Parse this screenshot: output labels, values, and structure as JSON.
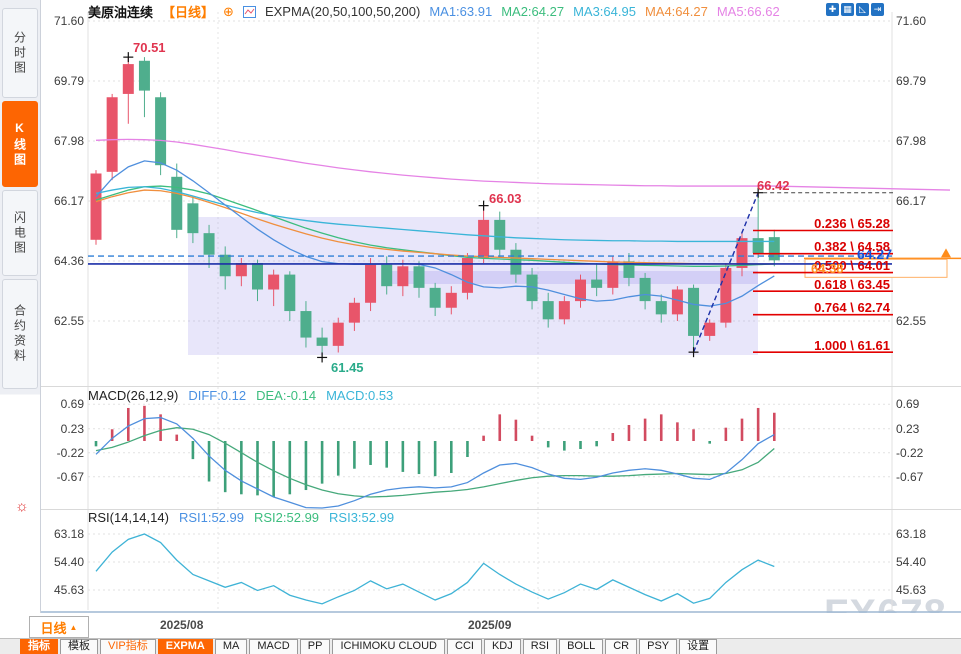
{
  "header": {
    "symbol": "美原油连续",
    "period": "【日线】",
    "plus_icon": "⊕",
    "indicator": "EXPMA(20,50,100,50,200)",
    "ma_labels": [
      {
        "text": "MA1:63.91"
      },
      {
        "text": "MA2:64.27"
      },
      {
        "text": "MA3:64.95"
      },
      {
        "text": "MA4:64.27"
      },
      {
        "text": "MA5:66.62"
      }
    ],
    "window_icons": [
      "✚",
      "▦",
      "◺",
      "⇥"
    ]
  },
  "sidebar": {
    "tabs": [
      {
        "label": "分时图"
      },
      {
        "label": "K线图"
      },
      {
        "label": "闪电图"
      },
      {
        "label": "合约资料"
      }
    ],
    "sun_glyph": "☼"
  },
  "main_chart": {
    "left_axis": [
      "71.60",
      "69.79",
      "67.98",
      "66.17",
      "64.36",
      "62.55"
    ],
    "right_axis": [
      "71.60",
      "69.79",
      "67.98",
      "66.17",
      "62.55"
    ],
    "annotations": {
      "peak": "70.51",
      "secondary_peak": "66.03",
      "breakout_high": "66.42",
      "low": "61.45",
      "price_line": "64.27"
    },
    "current_price": "64.38",
    "fib_levels": [
      {
        "label": "0.236 \\ 65.28",
        "price": 65.28
      },
      {
        "label": "0.382 \\ 64.58",
        "price": 64.58
      },
      {
        "label": "0.500 \\ 64.01",
        "price": 64.01
      },
      {
        "label": "0.618 \\ 63.45",
        "price": 63.45
      },
      {
        "label": "0.764 \\ 62.74",
        "price": 62.74
      },
      {
        "label": "1.000 \\ 61.61",
        "price": 61.61
      }
    ]
  },
  "macd_panel": {
    "title": "MACD(26,12,9)",
    "diff": "DIFF:0.12",
    "dea": "DEA:-0.14",
    "macd": "MACD:0.53",
    "axis": [
      "0.69",
      "0.23",
      "-0.22",
      "-0.67"
    ]
  },
  "rsi_panel": {
    "title": "RSI(14,14,14)",
    "rsi1": "RSI1:52.99",
    "rsi2": "RSI2:52.99",
    "rsi3": "RSI3:52.99",
    "axis": [
      "63.18",
      "54.40",
      "45.63"
    ]
  },
  "xaxis": {
    "period_button": "日线",
    "period_arrow": "▲",
    "dates": [
      "2025/08",
      "2025/09"
    ]
  },
  "toolbar": {
    "items": [
      "指标",
      "模板",
      "VIP指标",
      "EXPMA",
      "MA",
      "MACD",
      "PP",
      "ICHIMOKU CLOUD",
      "CCI",
      "KDJ",
      "RSI",
      "BOLL",
      "CR",
      "PSY",
      "设置"
    ]
  },
  "watermark": "FX678",
  "colors": {
    "up": "#e8556a",
    "down": "#4fae8d",
    "ma1": "#4f8fdd",
    "ma2": "#3cbd7e",
    "ma3": "#3ab5d8",
    "ma4": "#f08f3e",
    "ma5": "#e583e5",
    "fib": "#e30000",
    "accent_orange": "#ff8c1a",
    "navy": "#1b2fa8",
    "dashed_blue": "#2f7fd6",
    "macd_up": "#d24b60",
    "macd_down": "#3da07a",
    "rsi_line": "#3fb3d6"
  },
  "chart_data": {
    "type": "candlestick",
    "title": "美原油连续 日线 (US Crude Oil Continuous, Daily)",
    "x_dates": [
      "2025/08",
      "2025/09"
    ],
    "main_axis": [
      71.6,
      69.79,
      67.98,
      66.17,
      64.36,
      62.55
    ],
    "macd_axis": [
      0.69,
      0.23,
      -0.22,
      -0.67
    ],
    "rsi_axis": [
      63.18,
      54.4,
      45.63
    ],
    "fib": [
      65.28,
      64.58,
      64.01,
      63.45,
      62.74,
      61.61
    ],
    "levels": {
      "current": 64.38,
      "hline": 64.27,
      "dashed": 64.51,
      "high": 66.42,
      "low_anchor": 61.61
    },
    "marked_points": {
      "peak": 70.51,
      "secondary_peak": 66.03,
      "breakout_high": 66.42,
      "low": 61.45
    },
    "candles": [
      [
        65.0,
        67.1,
        64.85,
        67.0
      ],
      [
        67.05,
        69.4,
        66.8,
        69.3
      ],
      [
        69.4,
        70.51,
        68.5,
        70.3
      ],
      [
        70.4,
        70.51,
        68.7,
        69.5
      ],
      [
        69.3,
        69.45,
        66.95,
        67.25
      ],
      [
        66.9,
        67.3,
        65.05,
        65.3
      ],
      [
        66.1,
        66.3,
        64.9,
        65.2
      ],
      [
        65.2,
        65.45,
        64.15,
        64.55
      ],
      [
        64.55,
        64.8,
        63.5,
        63.9
      ],
      [
        63.9,
        64.45,
        63.6,
        64.3
      ],
      [
        64.3,
        64.4,
        63.15,
        63.5
      ],
      [
        63.5,
        64.1,
        63.0,
        63.95
      ],
      [
        63.95,
        64.05,
        62.55,
        62.85
      ],
      [
        62.85,
        63.15,
        61.75,
        62.05
      ],
      [
        62.05,
        62.35,
        61.45,
        61.8
      ],
      [
        61.8,
        62.65,
        61.6,
        62.5
      ],
      [
        62.5,
        63.25,
        62.25,
        63.1
      ],
      [
        63.1,
        64.45,
        62.85,
        64.25
      ],
      [
        64.25,
        64.5,
        63.35,
        63.6
      ],
      [
        63.6,
        64.4,
        63.3,
        64.2
      ],
      [
        64.2,
        64.35,
        63.25,
        63.55
      ],
      [
        63.55,
        63.7,
        62.7,
        62.95
      ],
      [
        62.95,
        63.6,
        62.75,
        63.4
      ],
      [
        63.4,
        64.6,
        63.2,
        64.45
      ],
      [
        64.45,
        66.03,
        64.3,
        65.6
      ],
      [
        65.6,
        65.85,
        64.45,
        64.7
      ],
      [
        64.7,
        64.9,
        63.7,
        63.95
      ],
      [
        63.95,
        64.15,
        62.9,
        63.15
      ],
      [
        63.15,
        63.4,
        62.35,
        62.6
      ],
      [
        62.6,
        63.3,
        62.45,
        63.15
      ],
      [
        63.15,
        63.95,
        62.95,
        63.8
      ],
      [
        63.8,
        64.3,
        63.3,
        63.55
      ],
      [
        63.55,
        64.5,
        63.35,
        64.35
      ],
      [
        64.35,
        64.6,
        63.6,
        63.85
      ],
      [
        63.85,
        64.0,
        62.9,
        63.15
      ],
      [
        63.15,
        63.35,
        62.5,
        62.75
      ],
      [
        62.75,
        63.6,
        62.55,
        63.5
      ],
      [
        63.55,
        63.65,
        61.61,
        62.1
      ],
      [
        62.1,
        62.6,
        61.95,
        62.5
      ],
      [
        62.5,
        64.3,
        62.35,
        64.15
      ],
      [
        64.15,
        65.25,
        63.9,
        65.05
      ],
      [
        65.05,
        66.42,
        64.45,
        64.6
      ],
      [
        65.08,
        65.3,
        64.2,
        64.38
      ]
    ],
    "expma": {
      "ma1": [
        66.3,
        66.85,
        67.2,
        67.38,
        67.32,
        67.1,
        66.78,
        66.42,
        66.05,
        65.68,
        65.32,
        65.0,
        64.72,
        64.5,
        64.34,
        64.28,
        64.26,
        64.26,
        64.27,
        64.28,
        64.26,
        64.15,
        63.95,
        63.72,
        63.58,
        63.55,
        63.6,
        63.58,
        63.48,
        63.35,
        63.22,
        63.15,
        63.18,
        63.28,
        63.35,
        63.3,
        63.18,
        63.05,
        63.0,
        63.08,
        63.3,
        63.62,
        63.91
      ],
      "ma2": [
        66.2,
        66.35,
        66.5,
        66.6,
        66.62,
        66.58,
        66.5,
        66.38,
        66.22,
        66.05,
        65.88,
        65.7,
        65.52,
        65.35,
        65.2,
        65.06,
        64.94,
        64.84,
        64.76,
        64.7,
        64.64,
        64.58,
        64.52,
        64.47,
        64.44,
        64.42,
        64.4,
        64.38,
        64.35,
        64.32,
        64.29,
        64.27,
        64.25,
        64.24,
        64.23,
        64.22,
        64.21,
        64.2,
        64.2,
        64.21,
        64.23,
        64.25,
        64.27
      ],
      "ma3": [
        66.4,
        66.5,
        66.58,
        66.6,
        66.55,
        66.45,
        66.32,
        66.18,
        66.05,
        65.93,
        65.82,
        65.73,
        65.65,
        65.58,
        65.52,
        65.47,
        65.43,
        65.39,
        65.35,
        65.31,
        65.27,
        65.23,
        65.19,
        65.15,
        65.12,
        65.09,
        65.06,
        65.04,
        65.02,
        65.0,
        64.99,
        64.98,
        64.97,
        64.97,
        64.96,
        64.96,
        64.95,
        64.95,
        64.95,
        64.95,
        64.95,
        64.95,
        64.95
      ],
      "ma4": [
        66.15,
        66.3,
        66.42,
        66.5,
        66.48,
        66.4,
        66.28,
        66.13,
        65.97,
        65.8,
        65.63,
        65.47,
        65.32,
        65.18,
        65.05,
        64.94,
        64.85,
        64.77,
        64.71,
        64.66,
        64.62,
        64.58,
        64.54,
        64.51,
        64.49,
        64.47,
        64.45,
        64.43,
        64.41,
        64.39,
        64.37,
        64.35,
        64.33,
        64.32,
        64.31,
        64.3,
        64.29,
        64.28,
        64.27,
        64.27,
        64.27,
        64.27,
        64.27
      ],
      "ma5": [
        68.0,
        68.02,
        68.03,
        68.02,
        68.0,
        67.95,
        67.88,
        67.8,
        67.72,
        67.63,
        67.55,
        67.47,
        67.39,
        67.31,
        67.24,
        67.17,
        67.11,
        67.05,
        67.0,
        66.95,
        66.91,
        66.87,
        66.83,
        66.8,
        66.77,
        66.75,
        66.73,
        66.71,
        66.69,
        66.68,
        66.67,
        66.66,
        66.65,
        66.64,
        66.63,
        66.63,
        66.62,
        66.62,
        66.62,
        66.62,
        66.62,
        66.62,
        66.62
      ]
    },
    "macd": {
      "diff": [
        -0.25,
        0.05,
        0.28,
        0.42,
        0.44,
        0.32,
        0.05,
        -0.28,
        -0.55,
        -0.75,
        -0.9,
        -1.05,
        -1.15,
        -1.25,
        -1.28,
        -1.22,
        -1.12,
        -1.0,
        -0.92,
        -0.88,
        -0.86,
        -0.88,
        -0.86,
        -0.78,
        -0.6,
        -0.45,
        -0.42,
        -0.5,
        -0.62,
        -0.7,
        -0.72,
        -0.68,
        -0.6,
        -0.55,
        -0.52,
        -0.55,
        -0.62,
        -0.7,
        -0.72,
        -0.6,
        -0.35,
        -0.05,
        0.12
      ],
      "dea": [
        -0.18,
        -0.12,
        -0.02,
        0.1,
        0.2,
        0.25,
        0.22,
        0.12,
        -0.04,
        -0.22,
        -0.4,
        -0.56,
        -0.7,
        -0.82,
        -0.92,
        -0.99,
        -1.03,
        -1.05,
        -1.04,
        -1.02,
        -0.99,
        -0.96,
        -0.94,
        -0.91,
        -0.86,
        -0.8,
        -0.74,
        -0.69,
        -0.66,
        -0.65,
        -0.65,
        -0.66,
        -0.66,
        -0.65,
        -0.63,
        -0.62,
        -0.61,
        -0.62,
        -0.63,
        -0.61,
        -0.54,
        -0.4,
        -0.14
      ],
      "hist": [
        -0.1,
        0.22,
        0.62,
        0.66,
        0.5,
        0.12,
        -0.34,
        -0.76,
        -0.96,
        -1.0,
        -1.02,
        -1.05,
        -1.0,
        -0.92,
        -0.8,
        -0.65,
        -0.52,
        -0.45,
        -0.5,
        -0.58,
        -0.62,
        -0.66,
        -0.6,
        -0.3,
        0.1,
        0.5,
        0.4,
        0.1,
        -0.12,
        -0.18,
        -0.15,
        -0.1,
        0.15,
        0.3,
        0.42,
        0.5,
        0.35,
        0.22,
        -0.05,
        0.25,
        0.42,
        0.62,
        0.53
      ]
    },
    "rsi": [
      51.5,
      57.5,
      61.5,
      63.18,
      60.5,
      55.0,
      50.5,
      48.5,
      46.5,
      48.0,
      45.5,
      47.0,
      44.0,
      42.5,
      41.3,
      43.5,
      45.5,
      48.5,
      46.0,
      47.5,
      45.0,
      42.5,
      44.5,
      48.0,
      54.0,
      50.5,
      47.5,
      45.0,
      42.8,
      44.8,
      47.5,
      45.8,
      48.8,
      46.5,
      44.2,
      42.2,
      44.5,
      41.5,
      43.0,
      48.0,
      52.0,
      55.0,
      52.99
    ]
  }
}
